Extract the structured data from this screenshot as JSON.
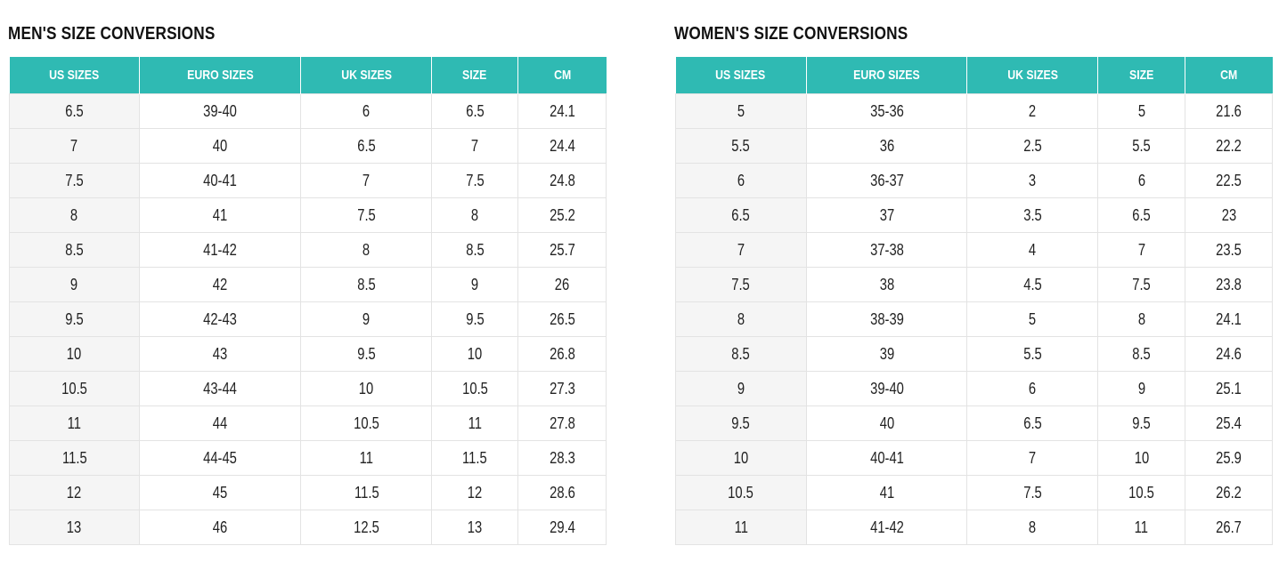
{
  "men": {
    "title": "MEN'S SIZE CONVERSIONS",
    "headers": [
      "US SIZES",
      "EURO SIZES",
      "UK SIZES",
      "SIZE",
      "CM"
    ],
    "rows": [
      [
        "6.5",
        "39-40",
        "6",
        "6.5",
        "24.1"
      ],
      [
        "7",
        "40",
        "6.5",
        "7",
        "24.4"
      ],
      [
        "7.5",
        "40-41",
        "7",
        "7.5",
        "24.8"
      ],
      [
        "8",
        "41",
        "7.5",
        "8",
        "25.2"
      ],
      [
        "8.5",
        "41-42",
        "8",
        "8.5",
        "25.7"
      ],
      [
        "9",
        "42",
        "8.5",
        "9",
        "26"
      ],
      [
        "9.5",
        "42-43",
        "9",
        "9.5",
        "26.5"
      ],
      [
        "10",
        "43",
        "9.5",
        "10",
        "26.8"
      ],
      [
        "10.5",
        "43-44",
        "10",
        "10.5",
        "27.3"
      ],
      [
        "11",
        "44",
        "10.5",
        "11",
        "27.8"
      ],
      [
        "11.5",
        "44-45",
        "11",
        "11.5",
        "28.3"
      ],
      [
        "12",
        "45",
        "11.5",
        "12",
        "28.6"
      ],
      [
        "13",
        "46",
        "12.5",
        "13",
        "29.4"
      ]
    ]
  },
  "women": {
    "title": "WOMEN'S SIZE CONVERSIONS",
    "headers": [
      "US SIZES",
      "EURO SIZES",
      "UK SIZES",
      "SIZE",
      "CM"
    ],
    "rows": [
      [
        "5",
        "35-36",
        "2",
        "5",
        "21.6"
      ],
      [
        "5.5",
        "36",
        "2.5",
        "5.5",
        "22.2"
      ],
      [
        "6",
        "36-37",
        "3",
        "6",
        "22.5"
      ],
      [
        "6.5",
        "37",
        "3.5",
        "6.5",
        "23"
      ],
      [
        "7",
        "37-38",
        "4",
        "7",
        "23.5"
      ],
      [
        "7.5",
        "38",
        "4.5",
        "7.5",
        "23.8"
      ],
      [
        "8",
        "38-39",
        "5",
        "8",
        "24.1"
      ],
      [
        "8.5",
        "39",
        "5.5",
        "8.5",
        "24.6"
      ],
      [
        "9",
        "39-40",
        "6",
        "9",
        "25.1"
      ],
      [
        "9.5",
        "40",
        "6.5",
        "9.5",
        "25.4"
      ],
      [
        "10",
        "40-41",
        "7",
        "10",
        "25.9"
      ],
      [
        "10.5",
        "41",
        "7.5",
        "10.5",
        "26.2"
      ],
      [
        "11",
        "41-42",
        "8",
        "11",
        "26.7"
      ]
    ]
  },
  "colors": {
    "header_bg": "#2fbab3",
    "header_text": "#ffffff",
    "first_column_bg": "#f5f5f5",
    "grid_line": "#e3e3e3"
  }
}
